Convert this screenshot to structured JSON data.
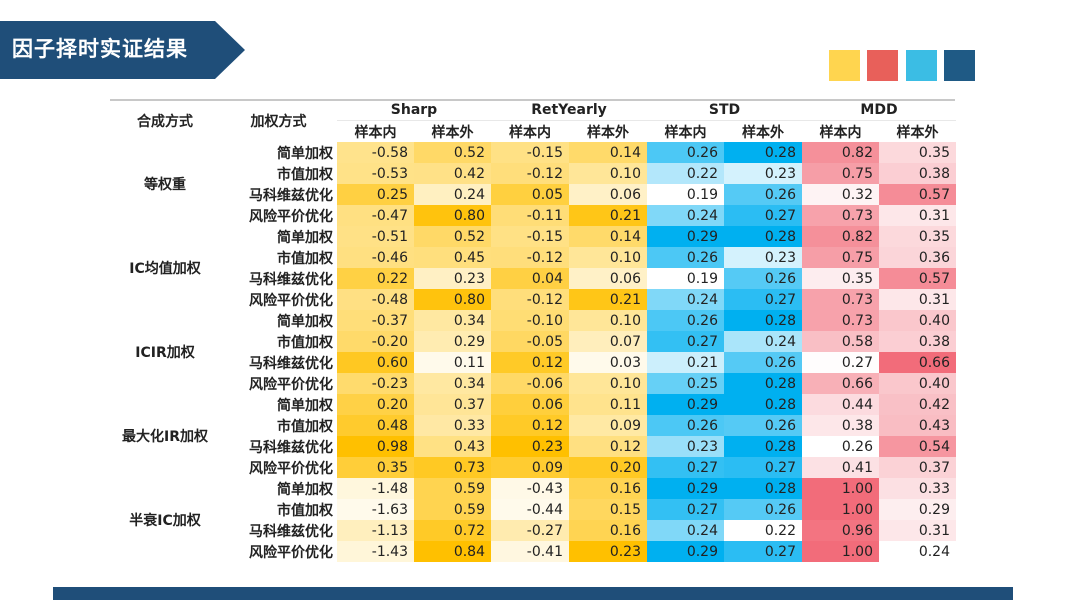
{
  "title": "因子择时实证结果",
  "colors": {
    "title_bg": "#1f4e79",
    "swatches": [
      "#ffd54f",
      "#e8605a",
      "#3bbde4",
      "#1f5a85"
    ],
    "bottom_bar": "#1f4e79"
  },
  "table": {
    "headers": {
      "col1": "合成方式",
      "col2": "加权方式",
      "metrics": [
        "Sharp",
        "RetYearly",
        "STD",
        "MDD"
      ],
      "sub": [
        "样本内",
        "样本外"
      ]
    },
    "groups": [
      {
        "name": "等权重",
        "rows": [
          {
            "method": "简单加权",
            "values": [
              "-0.58",
              "0.52",
              "-0.15",
              "0.14",
              "0.26",
              "0.28",
              "0.82",
              "0.35"
            ]
          },
          {
            "method": "市值加权",
            "values": [
              "-0.53",
              "0.42",
              "-0.12",
              "0.10",
              "0.22",
              "0.23",
              "0.75",
              "0.38"
            ]
          },
          {
            "method": "马科维兹优化",
            "values": [
              "0.25",
              "0.24",
              "0.05",
              "0.06",
              "0.19",
              "0.26",
              "0.32",
              "0.57"
            ]
          },
          {
            "method": "风险平价优化",
            "values": [
              "-0.47",
              "0.80",
              "-0.11",
              "0.21",
              "0.24",
              "0.27",
              "0.73",
              "0.31"
            ]
          }
        ]
      },
      {
        "name": "IC均值加权",
        "rows": [
          {
            "method": "简单加权",
            "values": [
              "-0.51",
              "0.52",
              "-0.15",
              "0.14",
              "0.29",
              "0.28",
              "0.82",
              "0.35"
            ]
          },
          {
            "method": "市值加权",
            "values": [
              "-0.46",
              "0.45",
              "-0.12",
              "0.10",
              "0.26",
              "0.23",
              "0.75",
              "0.36"
            ]
          },
          {
            "method": "马科维兹优化",
            "values": [
              "0.22",
              "0.23",
              "0.04",
              "0.06",
              "0.19",
              "0.26",
              "0.35",
              "0.57"
            ]
          },
          {
            "method": "风险平价优化",
            "values": [
              "-0.48",
              "0.80",
              "-0.12",
              "0.21",
              "0.24",
              "0.27",
              "0.73",
              "0.31"
            ]
          }
        ]
      },
      {
        "name": "ICIR加权",
        "rows": [
          {
            "method": "简单加权",
            "values": [
              "-0.37",
              "0.34",
              "-0.10",
              "0.10",
              "0.26",
              "0.28",
              "0.73",
              "0.40"
            ]
          },
          {
            "method": "市值加权",
            "values": [
              "-0.20",
              "0.29",
              "-0.05",
              "0.07",
              "0.27",
              "0.24",
              "0.58",
              "0.38"
            ]
          },
          {
            "method": "马科维兹优化",
            "values": [
              "0.60",
              "0.11",
              "0.12",
              "0.03",
              "0.21",
              "0.26",
              "0.27",
              "0.66"
            ]
          },
          {
            "method": "风险平价优化",
            "values": [
              "-0.23",
              "0.34",
              "-0.06",
              "0.10",
              "0.25",
              "0.28",
              "0.66",
              "0.40"
            ]
          }
        ]
      },
      {
        "name": "最大化IR加权",
        "rows": [
          {
            "method": "简单加权",
            "values": [
              "0.20",
              "0.37",
              "0.06",
              "0.11",
              "0.29",
              "0.28",
              "0.44",
              "0.42"
            ]
          },
          {
            "method": "市值加权",
            "values": [
              "0.48",
              "0.33",
              "0.12",
              "0.09",
              "0.26",
              "0.26",
              "0.38",
              "0.43"
            ]
          },
          {
            "method": "马科维兹优化",
            "values": [
              "0.98",
              "0.43",
              "0.23",
              "0.12",
              "0.23",
              "0.28",
              "0.26",
              "0.54"
            ]
          },
          {
            "method": "风险平价优化",
            "values": [
              "0.35",
              "0.73",
              "0.09",
              "0.20",
              "0.27",
              "0.27",
              "0.41",
              "0.37"
            ]
          }
        ]
      },
      {
        "name": "半衰IC加权",
        "rows": [
          {
            "method": "简单加权",
            "values": [
              "-1.48",
              "0.59",
              "-0.43",
              "0.16",
              "0.29",
              "0.28",
              "1.00",
              "0.33"
            ]
          },
          {
            "method": "市值加权",
            "values": [
              "-1.63",
              "0.59",
              "-0.44",
              "0.15",
              "0.27",
              "0.26",
              "1.00",
              "0.29"
            ]
          },
          {
            "method": "马科维兹优化",
            "values": [
              "-1.13",
              "0.72",
              "-0.27",
              "0.16",
              "0.24",
              "0.22",
              "0.96",
              "0.31"
            ]
          },
          {
            "method": "风险平价优化",
            "values": [
              "-1.43",
              "0.84",
              "-0.41",
              "0.23",
              "0.29",
              "0.27",
              "1.00",
              "0.24"
            ]
          }
        ]
      }
    ]
  }
}
